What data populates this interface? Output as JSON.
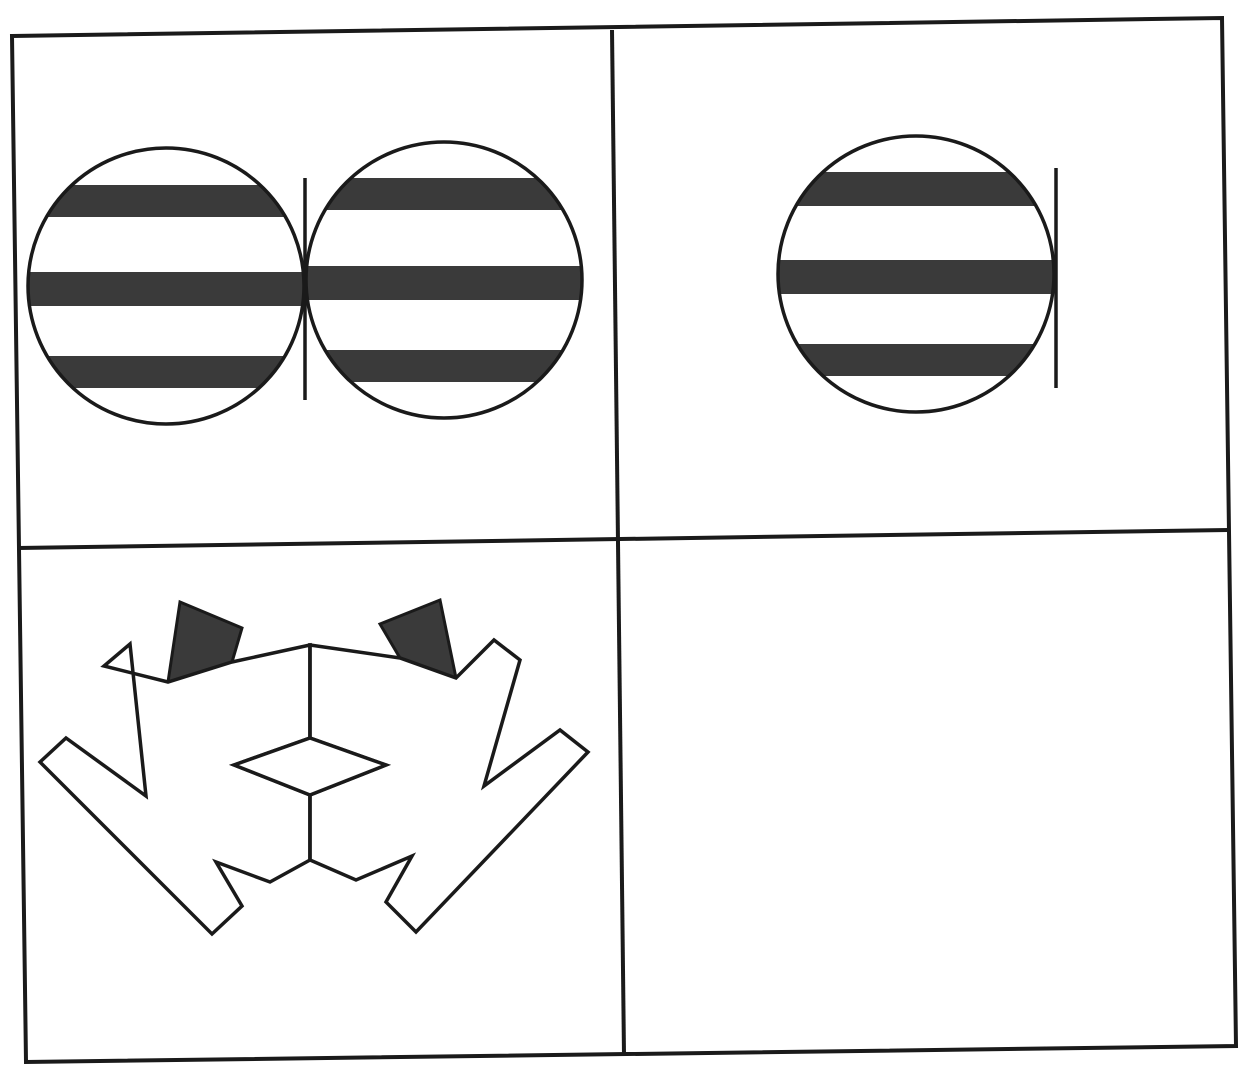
{
  "puzzle": {
    "colors": {
      "ink": "#1a1a1a",
      "band": "#3a3a3a",
      "background": "#ffffff"
    },
    "cells": [
      {
        "position": "top-left",
        "content": "two-striped-circles-with-center-line"
      },
      {
        "position": "top-right",
        "content": "one-striped-circle-with-side-line"
      },
      {
        "position": "bottom-left",
        "content": "symmetric-geometric-figure"
      },
      {
        "position": "bottom-right",
        "content": "empty"
      }
    ]
  }
}
